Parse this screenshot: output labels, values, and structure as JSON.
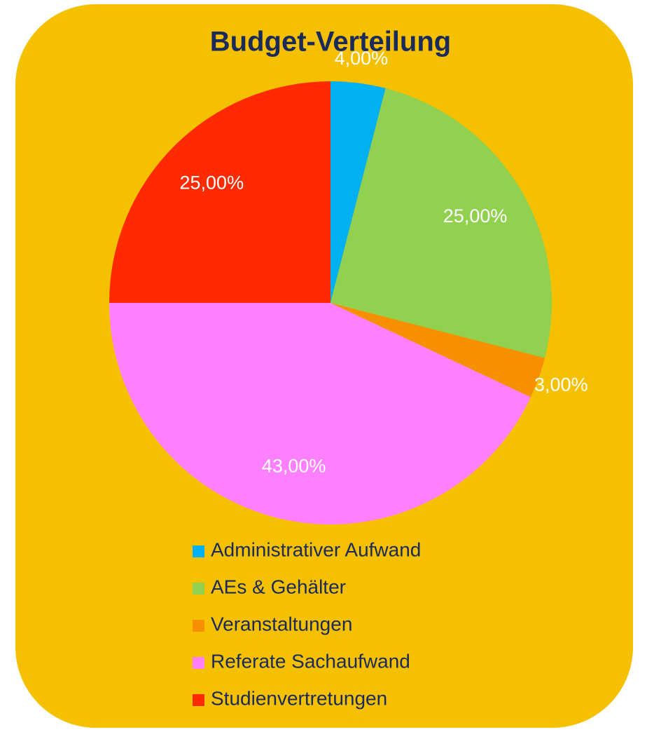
{
  "chart_data": {
    "type": "pie",
    "title": "Budget-Verteilung",
    "categories": [
      "Administrativer Aufwand",
      "AEs & Gehälter",
      "Veranstaltungen",
      "Referate Sachaufwand",
      "Studienvertretungen"
    ],
    "values": [
      4,
      25,
      3,
      43,
      25
    ],
    "value_labels": [
      "4,00%",
      "25,00%",
      "3,00%",
      "43,00%",
      "25,00%"
    ],
    "colors": [
      "#00b0f0",
      "#92d050",
      "#f79000",
      "#ff80ff",
      "#ff2a00"
    ],
    "legend": "bottom"
  }
}
